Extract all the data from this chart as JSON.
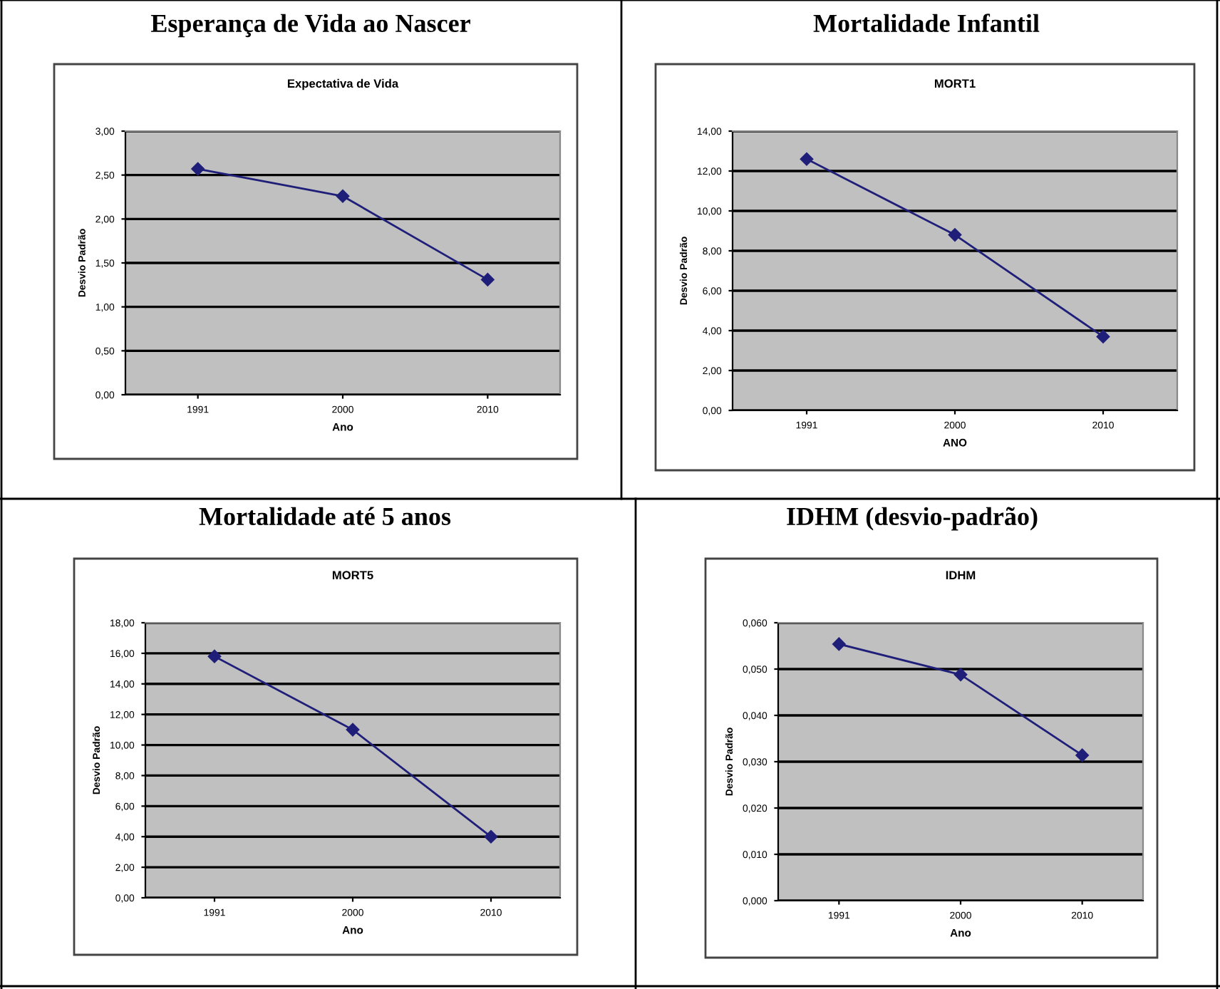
{
  "chart_data": [
    {
      "type": "line",
      "title": "Esperança de Vida ao Nascer",
      "subtitle": "Expectativa de Vida",
      "xlabel": "Ano",
      "ylabel": "Desvio Padrão",
      "categories": [
        "1991",
        "2000",
        "2010"
      ],
      "series": [
        {
          "color": "#1f1f7a",
          "values": [
            2.57,
            2.26,
            1.31
          ]
        }
      ],
      "ylim": [
        0,
        3
      ],
      "yticks": [
        {
          "value": 0,
          "label": "0,00"
        },
        {
          "value": 0.5,
          "label": "0,50"
        },
        {
          "value": 1,
          "label": "1,00"
        },
        {
          "value": 1.5,
          "label": "1,50"
        },
        {
          "value": 2,
          "label": "2,00"
        },
        {
          "value": 2.5,
          "label": "2,50"
        },
        {
          "value": 3,
          "label": "3,00"
        }
      ],
      "grid": "y",
      "marker": "diamond",
      "line_style": "solid"
    },
    {
      "type": "line",
      "title": "Mortalidade Infantil",
      "subtitle": "MORT1",
      "xlabel": "ANO",
      "ylabel": "Desvio Padrão",
      "categories": [
        "1991",
        "2000",
        "2010"
      ],
      "series": [
        {
          "color": "#1f1f7a",
          "values": [
            12.6,
            8.8,
            3.7
          ]
        }
      ],
      "ylim": [
        0,
        14
      ],
      "yticks": [
        {
          "value": 0,
          "label": "0,00"
        },
        {
          "value": 2,
          "label": "2,00"
        },
        {
          "value": 4,
          "label": "4,00"
        },
        {
          "value": 6,
          "label": "6,00"
        },
        {
          "value": 8,
          "label": "8,00"
        },
        {
          "value": 10,
          "label": "10,00"
        },
        {
          "value": 12,
          "label": "12,00"
        },
        {
          "value": 14,
          "label": "14,00"
        }
      ],
      "grid": "y",
      "marker": "diamond",
      "line_style": "solid"
    },
    {
      "type": "line",
      "title": "Mortalidade até 5 anos",
      "subtitle": "MORT5",
      "xlabel": "Ano",
      "ylabel": "Desvio Padrão",
      "categories": [
        "1991",
        "2000",
        "2010"
      ],
      "series": [
        {
          "color": "#1f1f7a",
          "values": [
            15.8,
            11.0,
            4.0
          ]
        }
      ],
      "ylim": [
        0,
        18
      ],
      "yticks": [
        {
          "value": 0,
          "label": "0,00"
        },
        {
          "value": 2,
          "label": "2,00"
        },
        {
          "value": 4,
          "label": "4,00"
        },
        {
          "value": 6,
          "label": "6,00"
        },
        {
          "value": 8,
          "label": "8,00"
        },
        {
          "value": 10,
          "label": "10,00"
        },
        {
          "value": 12,
          "label": "12,00"
        },
        {
          "value": 14,
          "label": "14,00"
        },
        {
          "value": 16,
          "label": "16,00"
        },
        {
          "value": 18,
          "label": "18,00"
        }
      ],
      "grid": "y",
      "marker": "diamond",
      "line_style": "solid"
    },
    {
      "type": "line",
      "title": "IDHM (desvio-padrão)",
      "subtitle": "IDHM",
      "xlabel": "Ano",
      "ylabel": "Desvio Padrão",
      "categories": [
        "1991",
        "2000",
        "2010"
      ],
      "series": [
        {
          "color": "#1f1f7a",
          "values": [
            0.0554,
            0.0488,
            0.0314
          ]
        }
      ],
      "ylim": [
        0,
        0.06
      ],
      "yticks": [
        {
          "value": 0,
          "label": "0,000"
        },
        {
          "value": 0.01,
          "label": "0,010"
        },
        {
          "value": 0.02,
          "label": "0,020"
        },
        {
          "value": 0.03,
          "label": "0,030"
        },
        {
          "value": 0.04,
          "label": "0,040"
        },
        {
          "value": 0.05,
          "label": "0,050"
        },
        {
          "value": 0.06,
          "label": "0,060"
        }
      ],
      "grid": "y",
      "marker": "diamond",
      "line_style": "solid"
    }
  ]
}
